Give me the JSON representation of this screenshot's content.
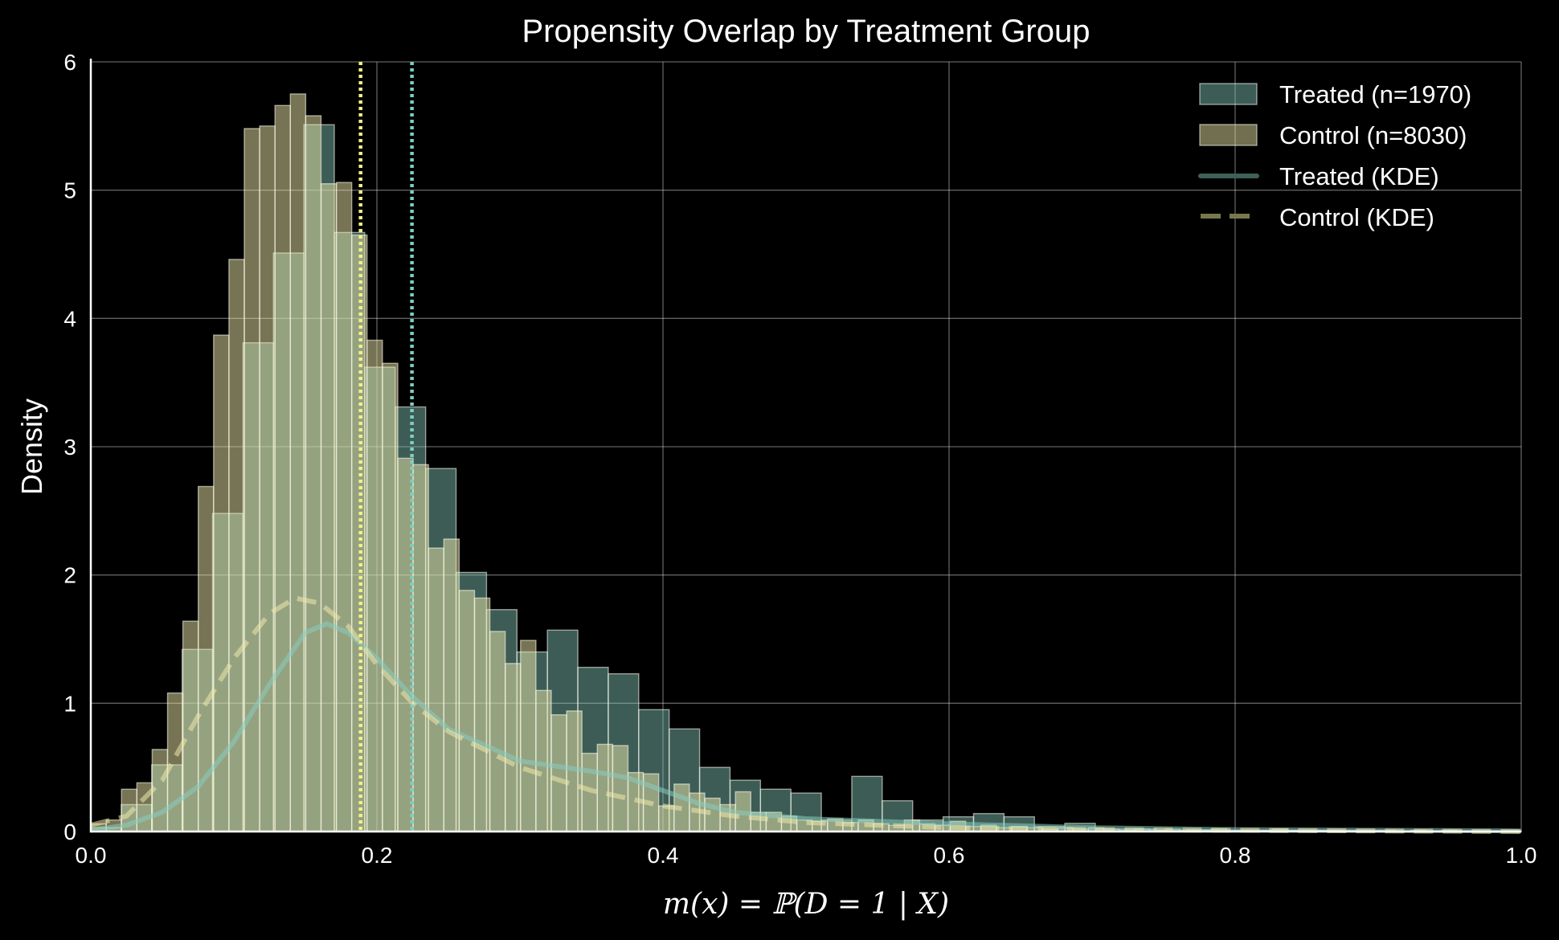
{
  "chart_data": {
    "type": "bar",
    "title": "Propensity Overlap by Treatment Group",
    "xlabel": "m(x) = ℙ(D = 1 | X)",
    "ylabel": "Density",
    "xlim": [
      0.0,
      1.0
    ],
    "ylim": [
      0,
      6
    ],
    "grid": true,
    "legend_placement": "top-right",
    "x_ticks": [
      "0.0",
      "0.2",
      "0.4",
      "0.6",
      "0.8",
      "1.0"
    ],
    "y_ticks": [
      "0",
      "1",
      "2",
      "3",
      "4",
      "5",
      "6"
    ],
    "series": [
      {
        "name": "Treated (n=1970)",
        "kind": "histogram",
        "color": "#88ccbe",
        "bin_start": 0.0,
        "bin_width": 0.02128,
        "values": [
          0.03,
          0.21,
          0.52,
          1.42,
          2.48,
          3.81,
          4.51,
          5.51,
          4.67,
          3.62,
          3.31,
          2.83,
          2.02,
          1.73,
          1.4,
          1.57,
          1.28,
          1.23,
          0.95,
          0.8,
          0.5,
          0.4,
          0.33,
          0.3,
          0.09,
          0.43,
          0.24,
          0.09,
          0.115,
          0.14,
          0.115,
          0.04,
          0.064,
          0.02,
          0.02,
          0.01,
          0.015,
          0.01,
          0.01,
          0.01,
          0.01,
          0.005,
          0.005,
          0.005,
          0.005,
          0.005,
          0.005
        ]
      },
      {
        "name": "Control (n=8030)",
        "kind": "histogram",
        "color": "#eee8aa",
        "bin_start": 0.0,
        "bin_width": 0.01073,
        "values": [
          0.06,
          0.09,
          0.33,
          0.38,
          0.64,
          1.08,
          1.64,
          2.69,
          3.87,
          4.46,
          5.48,
          5.5,
          5.66,
          5.75,
          5.58,
          5.05,
          5.06,
          4.65,
          3.83,
          3.65,
          2.91,
          2.86,
          2.21,
          2.28,
          1.88,
          1.82,
          1.56,
          1.31,
          1.49,
          1.1,
          0.91,
          0.94,
          0.61,
          0.68,
          0.67,
          0.46,
          0.45,
          0.2,
          0.37,
          0.3,
          0.26,
          0.21,
          0.31,
          0.15,
          0.15,
          0.12,
          0.09,
          0.08,
          0.1,
          0.07,
          0.09,
          0.06,
          0.05,
          0.09,
          0.06,
          0.05,
          0.08,
          0.04,
          0.05,
          0.03,
          0.04,
          0.03,
          0.02,
          0.03,
          0.02,
          0.03,
          0.02,
          0.01,
          0.02,
          0.01,
          0.02,
          0.01,
          0.01,
          0.02,
          0.01,
          0.01,
          0.01,
          0.02,
          0.01,
          0.01,
          0.01,
          0.01,
          0.01,
          0.01,
          0.01,
          0.005,
          0.01,
          0.005,
          0.01,
          0.005,
          0.005,
          0.005,
          0.005
        ]
      },
      {
        "name": "Treated (KDE)",
        "kind": "line",
        "style": "solid",
        "color": "#88ccbe",
        "x": [
          0,
          0.025,
          0.05,
          0.075,
          0.1,
          0.125,
          0.15,
          0.165,
          0.18,
          0.2,
          0.225,
          0.25,
          0.3,
          0.35,
          0.375,
          0.4,
          0.425,
          0.45,
          0.5,
          0.55,
          0.6,
          0.7,
          0.8,
          1.0
        ],
        "y": [
          0.01,
          0.05,
          0.15,
          0.35,
          0.7,
          1.15,
          1.55,
          1.62,
          1.55,
          1.35,
          1.05,
          0.8,
          0.55,
          0.47,
          0.42,
          0.32,
          0.22,
          0.15,
          0.1,
          0.08,
          0.06,
          0.03,
          0.015,
          0.005
        ]
      },
      {
        "name": "Control (KDE)",
        "kind": "line",
        "style": "dashed",
        "color": "#eee8aa",
        "x": [
          0,
          0.025,
          0.05,
          0.075,
          0.1,
          0.125,
          0.143,
          0.16,
          0.18,
          0.2,
          0.225,
          0.25,
          0.3,
          0.35,
          0.4,
          0.45,
          0.5,
          0.6,
          0.7,
          1.0
        ],
        "y": [
          0.05,
          0.12,
          0.4,
          0.9,
          1.35,
          1.7,
          1.82,
          1.78,
          1.6,
          1.3,
          1.0,
          0.78,
          0.5,
          0.32,
          0.2,
          0.12,
          0.07,
          0.03,
          0.015,
          0.0
        ]
      }
    ],
    "reference_lines": [
      {
        "x": 0.1886,
        "color": "#f5f08a",
        "style": "dotted"
      },
      {
        "x": 0.2245,
        "color": "#7fcfc0",
        "style": "dotted"
      }
    ]
  }
}
